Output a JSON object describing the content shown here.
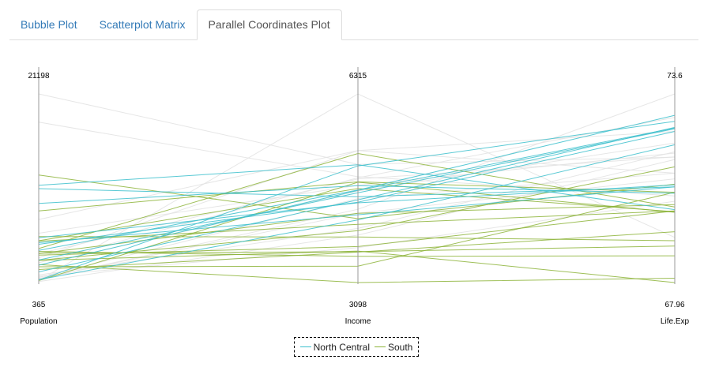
{
  "tabs": [
    {
      "label": "Bubble Plot",
      "active": false
    },
    {
      "label": "Scatterplot Matrix",
      "active": false
    },
    {
      "label": "Parallel Coordinates Plot",
      "active": true
    }
  ],
  "colors": {
    "north_central": "#3cc0cc",
    "south": "#8db43a",
    "other": "#e3e3e3"
  },
  "chart_data": {
    "type": "parallel_coordinates",
    "axes": [
      {
        "name": "Population",
        "min": 365,
        "max": 21198,
        "min_label": "365",
        "max_label": "21198"
      },
      {
        "name": "Income",
        "min": 3098,
        "max": 6315,
        "min_label": "3098",
        "max_label": "6315"
      },
      {
        "name": "Life.Exp",
        "min": 67.96,
        "max": 73.6,
        "min_label": "67.96",
        "max_label": "73.6"
      }
    ],
    "legend": [
      "North Central",
      "South"
    ],
    "series": [
      {
        "name": "North Central",
        "lines": [
          [
            11114,
            5107,
            70.14
          ],
          [
            5313,
            4458,
            70.88
          ],
          [
            2861,
            4628,
            72.56
          ],
          [
            2280,
            4669,
            72.58
          ],
          [
            9111,
            4751,
            70.63
          ],
          [
            3921,
            4675,
            72.96
          ],
          [
            4767,
            4254,
            70.82
          ],
          [
            1544,
            4508,
            72.6
          ],
          [
            637,
            5087,
            72.78
          ],
          [
            10735,
            4561,
            70.82
          ],
          [
            681,
            4167,
            72.08
          ],
          [
            4589,
            4468,
            72.48
          ]
        ]
      },
      {
        "name": "South",
        "lines": [
          [
            3615,
            3624,
            69.05
          ],
          [
            2110,
            3378,
            70.66
          ],
          [
            579,
            4809,
            70.06
          ],
          [
            8277,
            4815,
            70.66
          ],
          [
            4931,
            4091,
            70.1
          ],
          [
            12237,
            4188,
            70.9
          ],
          [
            3387,
            3712,
            70.1
          ],
          [
            3806,
            3545,
            68.76
          ],
          [
            4122,
            5299,
            70.22
          ],
          [
            2341,
            3098,
            68.09
          ],
          [
            5441,
            3875,
            69.21
          ],
          [
            2816,
            3983,
            71.42
          ],
          [
            2816,
            3635,
            67.96
          ],
          [
            4981,
            4701,
            70.08
          ],
          [
            1799,
            3617,
            69.48
          ],
          [
            3559,
            4280,
            70.29
          ]
        ]
      },
      {
        "name": "Other",
        "lines": [
          [
            21198,
            5114,
            71.71
          ],
          [
            18076,
            4903,
            70.55
          ],
          [
            7333,
            5348,
            71.23
          ],
          [
            1058,
            3694,
            70.39
          ],
          [
            3100,
            5348,
            72.48
          ],
          [
            1203,
            4022,
            71.87
          ],
          [
            812,
            4281,
            71.06
          ],
          [
            590,
            6315,
            69.31
          ],
          [
            2284,
            4660,
            72.13
          ],
          [
            746,
            4347,
            73.6
          ],
          [
            5814,
            4755,
            71.83
          ],
          [
            3559,
            4864,
            71.72
          ],
          [
            2541,
            4884,
            72.9
          ],
          [
            931,
            4530,
            71.23
          ],
          [
            472,
            3907,
            71.64
          ]
        ]
      }
    ]
  }
}
